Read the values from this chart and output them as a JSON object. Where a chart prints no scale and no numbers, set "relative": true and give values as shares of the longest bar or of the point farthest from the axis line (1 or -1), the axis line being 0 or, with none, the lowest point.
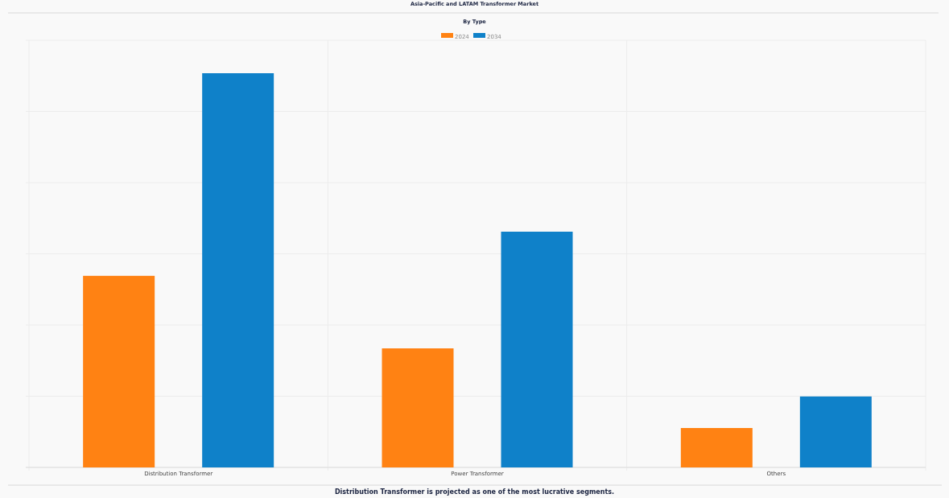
{
  "chart_data": {
    "type": "bar",
    "title": "Asia-Pacific and LATAM Transformer Market",
    "subtitle": "By Type",
    "categories": [
      "Distribution Transformer",
      "Power Transformer",
      "Others"
    ],
    "series": [
      {
        "name": "2024",
        "color": "#ff8213",
        "values": [
          0.486,
          0.302,
          0.1
        ]
      },
      {
        "name": "2034",
        "color": "#0f81c9",
        "values": [
          1,
          0.598,
          0.18
        ]
      }
    ],
    "relative": true,
    "grid": true,
    "legend": "top",
    "annotations": [
      "Distribution Transformer is projected as one of the most lucrative segments."
    ]
  }
}
